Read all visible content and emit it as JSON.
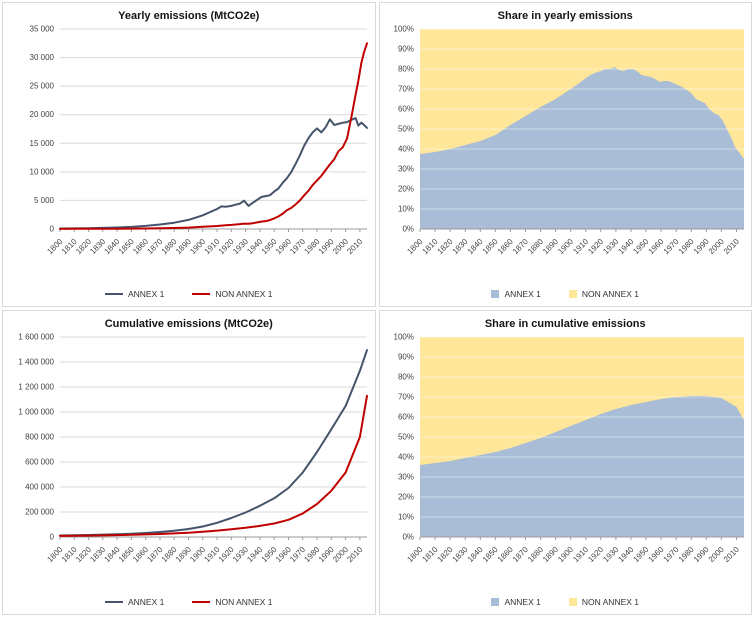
{
  "colors": {
    "annex1_line": "#44546A",
    "non_annex1_line": "#C00000",
    "annex1_area": "#A9BDD6",
    "non_annex1_area": "#FFE699",
    "grid": "#D9D9D9",
    "grid_on_area": "#FFFFFF",
    "axis": "#9B9B9B",
    "tick_text": "#3F3F3F",
    "title_text": "#141414",
    "panel_border": "#D9D9D9"
  },
  "chart_data": [
    {
      "id": "yearly-emissions",
      "type": "line",
      "title": "Yearly emissions (MtCO2e)",
      "xlabel": "",
      "ylabel": "",
      "xlim": [
        1800,
        2015
      ],
      "ylim": [
        0,
        35000
      ],
      "grid": true,
      "legend_position": "bottom",
      "x": [
        1800,
        1810,
        1820,
        1830,
        1840,
        1850,
        1860,
        1870,
        1880,
        1890,
        1900,
        1905,
        1910,
        1913,
        1916,
        1920,
        1923,
        1926,
        1929,
        1932,
        1935,
        1938,
        1941,
        1944,
        1947,
        1950,
        1953,
        1956,
        1959,
        1962,
        1965,
        1968,
        1971,
        1974,
        1977,
        1980,
        1983,
        1986,
        1989,
        1992,
        1995,
        1998,
        2001,
        2004,
        2007,
        2009,
        2011,
        2013,
        2015
      ],
      "series": [
        {
          "name": "ANNEX 1",
          "color_key": "annex1_line",
          "values": [
            80,
            110,
            140,
            190,
            260,
            360,
            540,
            790,
            1100,
            1600,
            2400,
            2950,
            3500,
            3950,
            3900,
            4050,
            4250,
            4450,
            4950,
            4050,
            4600,
            5100,
            5600,
            5750,
            5900,
            6550,
            7100,
            8100,
            8900,
            10000,
            11400,
            12900,
            14600,
            15900,
            16900,
            17600,
            16900,
            17800,
            19200,
            18200,
            18400,
            18600,
            18700,
            19100,
            19400,
            18100,
            18600,
            18200,
            17700
          ]
        },
        {
          "name": "NON ANNEX 1",
          "color_key": "non_annex1_line",
          "values": [
            25,
            30,
            35,
            45,
            55,
            70,
            95,
            125,
            170,
            240,
            380,
            450,
            530,
            600,
            650,
            720,
            780,
            850,
            950,
            920,
            1020,
            1150,
            1300,
            1380,
            1550,
            1850,
            2200,
            2700,
            3300,
            3700,
            4300,
            5000,
            5900,
            6700,
            7700,
            8500,
            9300,
            10300,
            11300,
            12200,
            13600,
            14300,
            15800,
            19500,
            23500,
            26000,
            29000,
            31000,
            32500
          ]
        }
      ],
      "y_ticks": {
        "values": [
          0,
          5000,
          10000,
          15000,
          20000,
          25000,
          30000,
          35000
        ],
        "labels": [
          "0",
          "5 000",
          "10 000",
          "15 000",
          "20 000",
          "25 000",
          "30 000",
          "35 000"
        ]
      },
      "x_ticks": [
        1800,
        1810,
        1820,
        1830,
        1840,
        1850,
        1860,
        1870,
        1880,
        1890,
        1900,
        1910,
        1920,
        1930,
        1940,
        1950,
        1960,
        1970,
        1980,
        1990,
        2000,
        2010
      ],
      "legend": [
        {
          "label": "ANNEX 1",
          "color_key": "annex1_line",
          "marker": "line"
        },
        {
          "label": "NON ANNEX 1",
          "color_key": "non_annex1_line",
          "marker": "line"
        }
      ]
    },
    {
      "id": "share-yearly-emissions",
      "type": "stacked_area_100",
      "title": "Share in yearly emissions",
      "xlabel": "",
      "ylabel": "",
      "xlim": [
        1800,
        2015
      ],
      "ylim": [
        0,
        100
      ],
      "grid": true,
      "legend_position": "bottom",
      "x": [
        1800,
        1810,
        1820,
        1830,
        1840,
        1850,
        1860,
        1870,
        1880,
        1890,
        1900,
        1905,
        1910,
        1913,
        1916,
        1920,
        1923,
        1926,
        1929,
        1932,
        1935,
        1938,
        1941,
        1944,
        1947,
        1950,
        1953,
        1956,
        1959,
        1962,
        1965,
        1968,
        1971,
        1974,
        1977,
        1980,
        1983,
        1986,
        1989,
        1992,
        1995,
        1998,
        2001,
        2004,
        2007,
        2009,
        2011,
        2013,
        2015
      ],
      "series": [
        {
          "name": "ANNEX 1",
          "color_key": "annex1_area",
          "values": [
            37.5,
            38.5,
            40,
            42,
            44,
            47,
            52,
            56.5,
            61,
            65,
            70,
            72.5,
            75.5,
            77,
            78,
            79,
            80,
            80,
            81,
            79.5,
            79,
            80,
            80,
            79,
            77,
            76.5,
            76,
            75,
            73.5,
            74,
            74,
            73,
            72,
            71,
            69.5,
            68,
            65,
            64,
            63,
            60,
            58,
            57,
            54,
            49.5,
            45,
            41,
            39,
            37,
            35
          ]
        },
        {
          "name": "NON ANNEX 1",
          "color_key": "non_annex1_area",
          "values": [
            62.5,
            61.5,
            60,
            58,
            56,
            53,
            48,
            43.5,
            39,
            35,
            30,
            27.5,
            24.5,
            23,
            22,
            21,
            20,
            20,
            19,
            20.5,
            21,
            20,
            20,
            21,
            23,
            23.5,
            24,
            25,
            26.5,
            26,
            26,
            27,
            28,
            29,
            30.5,
            32,
            35,
            36,
            37,
            40,
            42,
            43,
            46,
            50.5,
            55,
            59,
            61,
            63,
            65
          ]
        }
      ],
      "y_ticks": {
        "values": [
          0,
          10,
          20,
          30,
          40,
          50,
          60,
          70,
          80,
          90,
          100
        ],
        "labels": [
          "0%",
          "10%",
          "20%",
          "30%",
          "40%",
          "50%",
          "60%",
          "70%",
          "80%",
          "90%",
          "100%"
        ]
      },
      "x_ticks": [
        1800,
        1810,
        1820,
        1830,
        1840,
        1850,
        1860,
        1870,
        1880,
        1890,
        1900,
        1910,
        1920,
        1930,
        1940,
        1950,
        1960,
        1970,
        1980,
        1990,
        2000,
        2010
      ],
      "legend": [
        {
          "label": "ANNEX 1",
          "color_key": "annex1_area",
          "marker": "square"
        },
        {
          "label": "NON ANNEX 1",
          "color_key": "non_annex1_area",
          "marker": "square"
        }
      ]
    },
    {
      "id": "cumulative-emissions",
      "type": "line",
      "title": "Cumulative emissions (MtCO2e)",
      "xlabel": "",
      "ylabel": "",
      "xlim": [
        1800,
        2015
      ],
      "ylim": [
        0,
        1600000
      ],
      "grid": true,
      "legend_position": "bottom",
      "x": [
        1800,
        1810,
        1820,
        1830,
        1840,
        1850,
        1860,
        1870,
        1880,
        1890,
        1900,
        1910,
        1920,
        1930,
        1940,
        1950,
        1960,
        1970,
        1980,
        1990,
        2000,
        2010,
        2015
      ],
      "series": [
        {
          "name": "ANNEX 1",
          "color_key": "annex1_line",
          "values": [
            12000,
            14000,
            16000,
            19000,
            22000,
            26000,
            32000,
            40000,
            50000,
            64000,
            84000,
            114000,
            152000,
            196000,
            250000,
            310000,
            392000,
            515000,
            680000,
            862000,
            1048000,
            1330000,
            1495000
          ]
        },
        {
          "name": "NON ANNEX 1",
          "color_key": "non_annex1_line",
          "values": [
            9000,
            10000,
            11500,
            13000,
            15000,
            17500,
            20500,
            24000,
            28500,
            34500,
            42000,
            51000,
            61500,
            74000,
            89000,
            108000,
            138000,
            188000,
            264000,
            370000,
            516000,
            800000,
            1130000
          ]
        }
      ],
      "y_ticks": {
        "values": [
          0,
          200000,
          400000,
          600000,
          800000,
          1000000,
          1200000,
          1400000,
          1600000
        ],
        "labels": [
          "0",
          "200 000",
          "400 000",
          "600 000",
          "800 000",
          "1 000 000",
          "1 200 000",
          "1 400 000",
          "1 600 000"
        ]
      },
      "x_ticks": [
        1800,
        1810,
        1820,
        1830,
        1840,
        1850,
        1860,
        1870,
        1880,
        1890,
        1900,
        1910,
        1920,
        1930,
        1940,
        1950,
        1960,
        1970,
        1980,
        1990,
        2000,
        2010
      ],
      "legend": [
        {
          "label": "ANNEX 1",
          "color_key": "annex1_line",
          "marker": "line"
        },
        {
          "label": "NON ANNEX 1",
          "color_key": "non_annex1_line",
          "marker": "line"
        }
      ]
    },
    {
      "id": "share-cumulative-emissions",
      "type": "stacked_area_100",
      "title": "Share in cumulative emissions",
      "xlabel": "",
      "ylabel": "",
      "xlim": [
        1800,
        2015
      ],
      "ylim": [
        0,
        100
      ],
      "grid": true,
      "legend_position": "bottom",
      "x": [
        1800,
        1810,
        1820,
        1830,
        1840,
        1850,
        1860,
        1870,
        1880,
        1890,
        1900,
        1910,
        1920,
        1930,
        1940,
        1950,
        1960,
        1970,
        1980,
        1990,
        2000,
        2010,
        2015
      ],
      "series": [
        {
          "name": "ANNEX 1",
          "color_key": "annex1_area",
          "values": [
            36,
            37,
            38,
            39.5,
            41,
            42.5,
            44.5,
            47,
            49.5,
            52.5,
            55.5,
            58.5,
            61.5,
            64,
            66,
            67.5,
            69,
            70,
            70.5,
            70.5,
            69.5,
            65,
            58.5
          ]
        },
        {
          "name": "NON ANNEX 1",
          "color_key": "non_annex1_area",
          "values": [
            64,
            63,
            62,
            60.5,
            59,
            57.5,
            55.5,
            53,
            50.5,
            47.5,
            44.5,
            41.5,
            38.5,
            36,
            34,
            32.5,
            31,
            30,
            29.5,
            29.5,
            30.5,
            35,
            41.5
          ]
        }
      ],
      "y_ticks": {
        "values": [
          0,
          10,
          20,
          30,
          40,
          50,
          60,
          70,
          80,
          90,
          100
        ],
        "labels": [
          "0%",
          "10%",
          "20%",
          "30%",
          "40%",
          "50%",
          "60%",
          "70%",
          "80%",
          "90%",
          "100%"
        ]
      },
      "x_ticks": [
        1800,
        1810,
        1820,
        1830,
        1840,
        1850,
        1860,
        1870,
        1880,
        1890,
        1900,
        1910,
        1920,
        1930,
        1940,
        1950,
        1960,
        1970,
        1980,
        1990,
        2000,
        2010
      ],
      "legend": [
        {
          "label": "ANNEX 1",
          "color_key": "annex1_area",
          "marker": "square"
        },
        {
          "label": "NON ANNEX 1",
          "color_key": "non_annex1_area",
          "marker": "square"
        }
      ]
    }
  ]
}
